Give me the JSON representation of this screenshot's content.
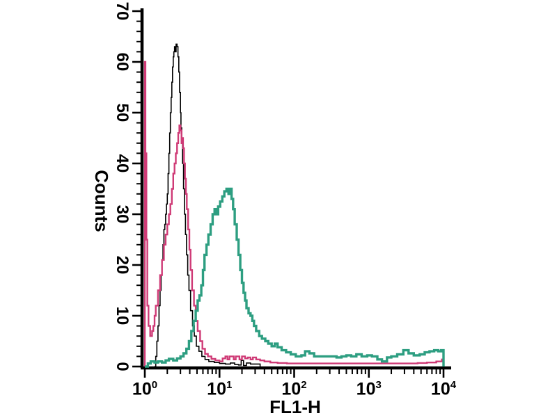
{
  "figure": {
    "background_color": "#ffffff",
    "axis_color": "#000000",
    "text_color": "#000000"
  },
  "chart_data": {
    "type": "line",
    "subtype": "flow-cytometry-histogram-overlay",
    "title": "",
    "xlabel": "FL1-H",
    "ylabel": "Counts",
    "x_scale": "log",
    "xlim": [
      1,
      10000
    ],
    "ylim": [
      0,
      70
    ],
    "grid": false,
    "legend_position": "none",
    "y_major_ticks": [
      0,
      10,
      20,
      30,
      40,
      50,
      60,
      70
    ],
    "y_minor_step": 2,
    "x_major_ticks": [
      {
        "base": "10",
        "exp": "0",
        "value": 1
      },
      {
        "base": "10",
        "exp": "1",
        "value": 10
      },
      {
        "base": "10",
        "exp": "2",
        "value": 100
      },
      {
        "base": "10",
        "exp": "3",
        "value": 1000
      },
      {
        "base": "10",
        "exp": "4",
        "value": 10000
      }
    ],
    "series": [
      {
        "name": "black-trace",
        "color": "#000000",
        "width": 1.6,
        "peak": {
          "x": 2.6,
          "counts": 63.5
        },
        "points": [
          [
            1.35,
            0
          ],
          [
            1.4,
            2
          ],
          [
            1.45,
            5
          ],
          [
            1.5,
            8
          ],
          [
            1.55,
            12
          ],
          [
            1.6,
            15
          ],
          [
            1.65,
            18
          ],
          [
            1.7,
            21
          ],
          [
            1.75,
            24
          ],
          [
            1.8,
            27
          ],
          [
            1.85,
            28
          ],
          [
            1.9,
            30
          ],
          [
            1.95,
            32
          ],
          [
            2.0,
            34
          ],
          [
            2.05,
            38
          ],
          [
            2.1,
            42
          ],
          [
            2.15,
            46
          ],
          [
            2.2,
            50
          ],
          [
            2.25,
            53
          ],
          [
            2.3,
            56
          ],
          [
            2.35,
            59
          ],
          [
            2.4,
            61
          ],
          [
            2.45,
            62
          ],
          [
            2.5,
            63
          ],
          [
            2.55,
            62
          ],
          [
            2.62,
            63.5
          ],
          [
            2.7,
            63
          ],
          [
            2.78,
            61
          ],
          [
            2.85,
            58
          ],
          [
            2.92,
            54
          ],
          [
            3.0,
            50
          ],
          [
            3.05,
            47
          ],
          [
            3.12,
            44
          ],
          [
            3.2,
            40
          ],
          [
            3.3,
            35
          ],
          [
            3.4,
            30
          ],
          [
            3.5,
            26
          ],
          [
            3.62,
            22
          ],
          [
            3.75,
            18
          ],
          [
            3.9,
            15
          ],
          [
            4.1,
            11
          ],
          [
            4.35,
            8
          ],
          [
            4.6,
            6
          ],
          [
            4.9,
            4
          ],
          [
            5.3,
            3
          ],
          [
            5.8,
            2
          ],
          [
            6.4,
            1.4
          ],
          [
            7.2,
            1
          ],
          [
            8.5,
            0.8
          ],
          [
            10,
            0.6
          ],
          [
            12,
            0.5
          ],
          [
            14,
            0.7
          ],
          [
            16,
            0.4
          ],
          [
            18,
            0.3
          ],
          [
            19.5,
            1.2
          ],
          [
            21,
            0.2
          ],
          [
            23,
            0.7
          ],
          [
            26,
            0.5
          ],
          [
            30,
            0.5
          ],
          [
            35,
            0.4
          ]
        ]
      },
      {
        "name": "pink-trace",
        "color": "#cf3a76",
        "width": 2.4,
        "peak": {
          "x": 2.9,
          "counts": 47.5
        },
        "points": [
          [
            1.0,
            60
          ],
          [
            1.02,
            42
          ],
          [
            1.05,
            25
          ],
          [
            1.08,
            12
          ],
          [
            1.12,
            8
          ],
          [
            1.18,
            6
          ],
          [
            1.25,
            7
          ],
          [
            1.3,
            8
          ],
          [
            1.35,
            10
          ],
          [
            1.4,
            12
          ],
          [
            1.5,
            15
          ],
          [
            1.6,
            18
          ],
          [
            1.7,
            21
          ],
          [
            1.8,
            24
          ],
          [
            1.9,
            26
          ],
          [
            2.0,
            28
          ],
          [
            2.1,
            30
          ],
          [
            2.2,
            32
          ],
          [
            2.3,
            35
          ],
          [
            2.4,
            38
          ],
          [
            2.5,
            40
          ],
          [
            2.6,
            42
          ],
          [
            2.7,
            44
          ],
          [
            2.8,
            46
          ],
          [
            2.9,
            47.5
          ],
          [
            3.0,
            46.5
          ],
          [
            3.1,
            44
          ],
          [
            3.18,
            45
          ],
          [
            3.25,
            43
          ],
          [
            3.35,
            40
          ],
          [
            3.45,
            37
          ],
          [
            3.55,
            34
          ],
          [
            3.65,
            31
          ],
          [
            3.8,
            27
          ],
          [
            3.95,
            23
          ],
          [
            4.1,
            19
          ],
          [
            4.3,
            15
          ],
          [
            4.55,
            12
          ],
          [
            4.8,
            9
          ],
          [
            5.1,
            7
          ],
          [
            5.5,
            5
          ],
          [
            5.9,
            3.5
          ],
          [
            6.4,
            2.5
          ],
          [
            7.0,
            2
          ],
          [
            7.8,
            1.5
          ],
          [
            8.8,
            1.2
          ],
          [
            10,
            1
          ],
          [
            11,
            1.6
          ],
          [
            12,
            2
          ],
          [
            12.8,
            1.4
          ],
          [
            13.6,
            2
          ],
          [
            14.5,
            2
          ],
          [
            15.5,
            1.4
          ],
          [
            16.5,
            2
          ],
          [
            17.5,
            2
          ],
          [
            18.5,
            1.4
          ],
          [
            20,
            2
          ],
          [
            22,
            1.6
          ],
          [
            24,
            1.8
          ],
          [
            26,
            1.4
          ],
          [
            28,
            1.8
          ],
          [
            31,
            1.4
          ],
          [
            35,
            1.2
          ],
          [
            40,
            1
          ],
          [
            48,
            0.8
          ],
          [
            60,
            0.7
          ],
          [
            80,
            0.6
          ],
          [
            110,
            0.6
          ],
          [
            150,
            0.6
          ],
          [
            220,
            0.6
          ],
          [
            350,
            0.6
          ],
          [
            500,
            0.6
          ],
          [
            700,
            0.6
          ],
          [
            1000,
            0.6
          ],
          [
            1500,
            0.6
          ],
          [
            2200,
            0.6
          ],
          [
            3200,
            0.6
          ],
          [
            4500,
            0.7
          ],
          [
            6000,
            0.8
          ],
          [
            8000,
            1
          ],
          [
            9500,
            1.4
          ],
          [
            10000,
            1.6
          ]
        ]
      },
      {
        "name": "teal-trace",
        "color": "#2d9e81",
        "width": 3.4,
        "peak": {
          "x": 12.4,
          "counts": 35
        },
        "points": [
          [
            1.0,
            0
          ],
          [
            1.1,
            0.6
          ],
          [
            1.2,
            1
          ],
          [
            1.35,
            0.8
          ],
          [
            1.5,
            1
          ],
          [
            1.7,
            0.8
          ],
          [
            1.9,
            1.2
          ],
          [
            2.1,
            1.5
          ],
          [
            2.4,
            1.2
          ],
          [
            2.7,
            1.6
          ],
          [
            3.0,
            2
          ],
          [
            3.3,
            2.6
          ],
          [
            3.6,
            3.5
          ],
          [
            3.9,
            5
          ],
          [
            4.2,
            7
          ],
          [
            4.5,
            9
          ],
          [
            4.8,
            11
          ],
          [
            5.1,
            13
          ],
          [
            5.4,
            14
          ],
          [
            5.7,
            16
          ],
          [
            6.0,
            19
          ],
          [
            6.3,
            22
          ],
          [
            6.7,
            24
          ],
          [
            7.1,
            26
          ],
          [
            7.6,
            28
          ],
          [
            8.1,
            30
          ],
          [
            8.6,
            31
          ],
          [
            9.1,
            30
          ],
          [
            9.6,
            31.5
          ],
          [
            10.2,
            32.5
          ],
          [
            10.9,
            33.5
          ],
          [
            11.6,
            34.5
          ],
          [
            12.4,
            35
          ],
          [
            13.2,
            34
          ],
          [
            13.8,
            35
          ],
          [
            14.5,
            33
          ],
          [
            15.2,
            31
          ],
          [
            16,
            28
          ],
          [
            17,
            25
          ],
          [
            18,
            22
          ],
          [
            19,
            19
          ],
          [
            20,
            16.5
          ],
          [
            21,
            14.5
          ],
          [
            22,
            13
          ],
          [
            23,
            11.5
          ],
          [
            24.5,
            10.5
          ],
          [
            26,
            10
          ],
          [
            27.5,
            9
          ],
          [
            29,
            8
          ],
          [
            31,
            7
          ],
          [
            34,
            6
          ],
          [
            37,
            5.5
          ],
          [
            41,
            5
          ],
          [
            45,
            4.5
          ],
          [
            50,
            4
          ],
          [
            55,
            4.5
          ],
          [
            60,
            3.8
          ],
          [
            68,
            3.2
          ],
          [
            78,
            2.8
          ],
          [
            90,
            2.4
          ],
          [
            105,
            2
          ],
          [
            125,
            2.2
          ],
          [
            140,
            3
          ],
          [
            160,
            2.6
          ],
          [
            185,
            2
          ],
          [
            220,
            2
          ],
          [
            260,
            2
          ],
          [
            310,
            2
          ],
          [
            370,
            1.8
          ],
          [
            430,
            2
          ],
          [
            500,
            2.2
          ],
          [
            580,
            2
          ],
          [
            680,
            2.4
          ],
          [
            800,
            2
          ],
          [
            950,
            2.2
          ],
          [
            1100,
            2
          ],
          [
            1300,
            1.4
          ],
          [
            1500,
            1
          ],
          [
            1750,
            1.8
          ],
          [
            2000,
            2
          ],
          [
            2400,
            2.4
          ],
          [
            2900,
            3.2
          ],
          [
            3400,
            2.6
          ],
          [
            4000,
            2.2
          ],
          [
            4800,
            2.4
          ],
          [
            5600,
            2.8
          ],
          [
            6500,
            3
          ],
          [
            7500,
            3.2
          ],
          [
            8500,
            3
          ],
          [
            9300,
            3.2
          ],
          [
            10000,
            2.6
          ]
        ]
      }
    ]
  }
}
